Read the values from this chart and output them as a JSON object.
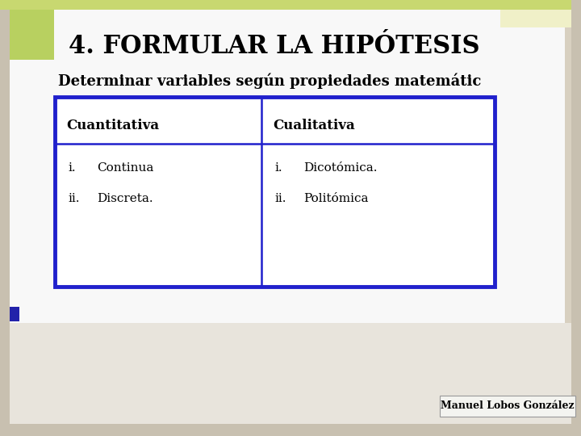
{
  "title": "4. FORMULAR LA HIPÓTESIS",
  "subtitle": "Determinar variables según propiedades matemátic",
  "bg_outer": "#c8c0b0",
  "bg_inner": "#f8f8f8",
  "green_box_color": "#b8d060",
  "green_top_strip": "#c8d870",
  "top_right_box_color": "#f0f0c8",
  "blue_accent_color": "#2222aa",
  "right_strip_color": "#c8c0b0",
  "table_border_color": "#2020cc",
  "table_header_left": "Cuantitativa",
  "table_header_right": "Cualitativa",
  "table_left_items_roman": [
    "i.",
    "ii."
  ],
  "table_left_items_text": [
    "Continua",
    "Discreta."
  ],
  "table_right_items_roman": [
    "i.",
    "ii."
  ],
  "table_right_items_text": [
    "Dicotómica.",
    "Politómica"
  ],
  "watermark": "Manuel Lobos González",
  "title_fontsize": 22,
  "subtitle_fontsize": 13,
  "table_header_fontsize": 12,
  "table_item_fontsize": 11,
  "watermark_fontsize": 9
}
